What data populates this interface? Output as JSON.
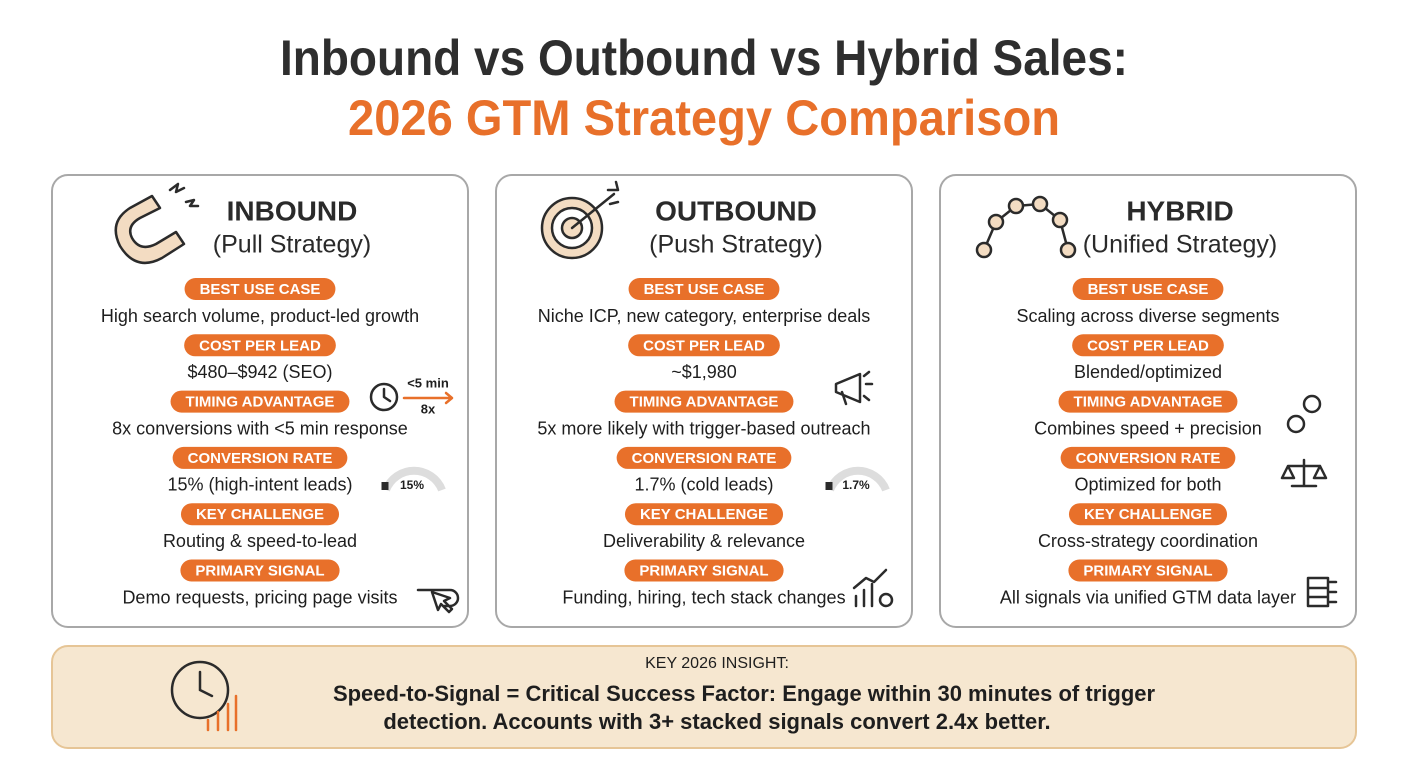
{
  "header": {
    "title": "Inbound vs Outbound vs Hybrid Sales:",
    "subtitle": "2026 GTM Strategy Comparison"
  },
  "cards": [
    {
      "name": "INBOUND",
      "strategy": "(Pull Strategy)",
      "rows": [
        {
          "label": "BEST USE CASE",
          "text": "High search volume, product-led growth"
        },
        {
          "label": "COST PER LEAD",
          "text": "$480–$942 (SEO)"
        },
        {
          "label": "TIMING ADVANTAGE",
          "text": "8x conversions with <5 min response"
        },
        {
          "label": "CONVERSION RATE",
          "text": "15% (high-intent leads)"
        },
        {
          "label": "KEY CHALLENGE",
          "text": "Routing & speed-to-lead"
        },
        {
          "label": "PRIMARY SIGNAL",
          "text": "Demo requests, pricing page visits"
        }
      ],
      "icon_texts": [
        "<5 min",
        "8x"
      ],
      "gauge_label": "15%"
    },
    {
      "name": "OUTBOUND",
      "strategy": "(Push Strategy)",
      "rows": [
        {
          "label": "BEST USE CASE",
          "text": "Niche ICP, new category, enterprise deals"
        },
        {
          "label": "COST PER LEAD",
          "text": "~$1,980"
        },
        {
          "label": "TIMING ADVANTAGE",
          "text": "5x more likely with trigger-based outreach"
        },
        {
          "label": "CONVERSION RATE",
          "text": "1.7% (cold leads)"
        },
        {
          "label": "KEY CHALLENGE",
          "text": "Deliverability & relevance"
        },
        {
          "label": "PRIMARY SIGNAL",
          "text": "Funding, hiring, tech stack changes"
        }
      ],
      "gauge_label": "1.7%"
    },
    {
      "name": "HYBRID",
      "strategy": "(Unified Strategy)",
      "rows": [
        {
          "label": "BEST USE CASE",
          "text": "Scaling across diverse segments"
        },
        {
          "label": "COST PER LEAD",
          "text": "Blended/optimized"
        },
        {
          "label": "TIMING ADVANTAGE",
          "text": "Combines speed + precision"
        },
        {
          "label": "CONVERSION RATE",
          "text": "Optimized for both"
        },
        {
          "label": "KEY CHALLENGE",
          "text": "Cross-strategy coordination"
        },
        {
          "label": "PRIMARY SIGNAL",
          "text": "All signals via unified GTM data layer"
        }
      ]
    }
  ],
  "insight": {
    "label": "KEY 2026 INSIGHT:",
    "lines": [
      "Speed-to-Signal = Critical Success Factor: Engage within 30 minutes of trigger",
      "detection. Accounts with 3+ stacked signals convert 2.4x better."
    ]
  }
}
